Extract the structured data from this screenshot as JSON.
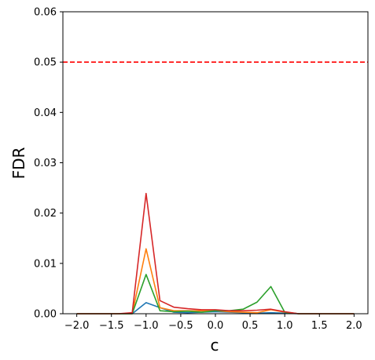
{
  "chart_data": {
    "type": "line",
    "xlabel": "c",
    "ylabel": "FDR",
    "xlim": [
      -2.2,
      2.2
    ],
    "ylim": [
      0,
      0.06
    ],
    "x_ticks": [
      -2.0,
      -1.5,
      -1.0,
      -0.5,
      0.0,
      0.5,
      1.0,
      1.5,
      2.0
    ],
    "x_tick_labels": [
      "−2.0",
      "−1.5",
      "−1.0",
      "−0.5",
      "0.0",
      "0.5",
      "1.0",
      "1.5",
      "2.0"
    ],
    "y_ticks": [
      0.0,
      0.01,
      0.02,
      0.03,
      0.04,
      0.05,
      0.06
    ],
    "y_tick_labels": [
      "0.00",
      "0.01",
      "0.02",
      "0.03",
      "0.04",
      "0.05",
      "0.06"
    ],
    "grid": false,
    "reference_line": {
      "y": 0.05,
      "color": "#ff0000",
      "style": "dashed"
    },
    "x": [
      -2.0,
      -1.8,
      -1.6,
      -1.4,
      -1.2,
      -1.0,
      -0.8,
      -0.6,
      -0.4,
      -0.2,
      0.0,
      0.2,
      0.4,
      0.6,
      0.8,
      1.0,
      1.2,
      1.4,
      1.6,
      1.8,
      2.0
    ],
    "series": [
      {
        "color": "#1f77b4",
        "values": [
          0,
          0,
          0,
          0,
          0,
          0.0022,
          0.0012,
          0.0003,
          0.0002,
          0.0003,
          0.0004,
          0.0003,
          0.0002,
          0.0001,
          0.0002,
          0.0001,
          0,
          0,
          0,
          0,
          0
        ]
      },
      {
        "color": "#ff7f0e",
        "values": [
          0,
          0,
          0,
          0,
          0,
          0.0129,
          0.0012,
          0.0006,
          0.0006,
          0.0006,
          0.0006,
          0.0004,
          0.0003,
          0.0002,
          0.0008,
          0.0003,
          0,
          0,
          0,
          0,
          0
        ]
      },
      {
        "color": "#2ca02c",
        "values": [
          0,
          0,
          0,
          0,
          0,
          0.0078,
          0.0006,
          0.0004,
          0.0005,
          0.0003,
          0.0006,
          0.0006,
          0.0009,
          0.0023,
          0.0054,
          0.0003,
          0,
          0,
          0,
          0,
          0
        ]
      },
      {
        "color": "#d62728",
        "values": [
          0,
          0,
          0,
          0,
          0.0002,
          0.0239,
          0.0026,
          0.0013,
          0.001,
          0.0008,
          0.0008,
          0.0006,
          0.0006,
          0.0007,
          0.0009,
          0.0004,
          0,
          0,
          0,
          0,
          0
        ]
      }
    ]
  }
}
